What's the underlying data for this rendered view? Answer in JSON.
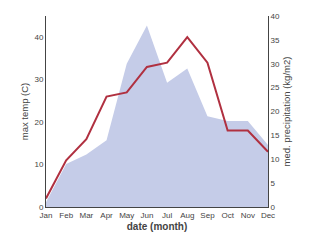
{
  "chart_data": {
    "type": "line",
    "categories": [
      "Jan",
      "Feb",
      "Mar",
      "Apr",
      "May",
      "Jun",
      "Jul",
      "Aug",
      "Sep",
      "Oct",
      "Nov",
      "Dec"
    ],
    "xlabel": "date (month)",
    "ylabel": "max temp (C)",
    "y2label": "med. precipitation (kg/m2)",
    "series": [
      {
        "type": "area",
        "color": "#c5cce8",
        "axis": "y2",
        "values": [
          1,
          9,
          11,
          14,
          30,
          38,
          26,
          29,
          19,
          18,
          18,
          13
        ]
      },
      {
        "type": "line",
        "color": "#b03040",
        "values": [
          2,
          11,
          16,
          26,
          27,
          33,
          34,
          40,
          34,
          18,
          18,
          13
        ]
      }
    ],
    "ylim": [
      0,
      45
    ],
    "yticks": [
      0,
      10,
      20,
      30,
      40
    ],
    "y2lim": [
      0,
      40
    ],
    "y2ticks": [
      0,
      5,
      10,
      15,
      20,
      25,
      30,
      35,
      40
    ],
    "grid": false
  }
}
